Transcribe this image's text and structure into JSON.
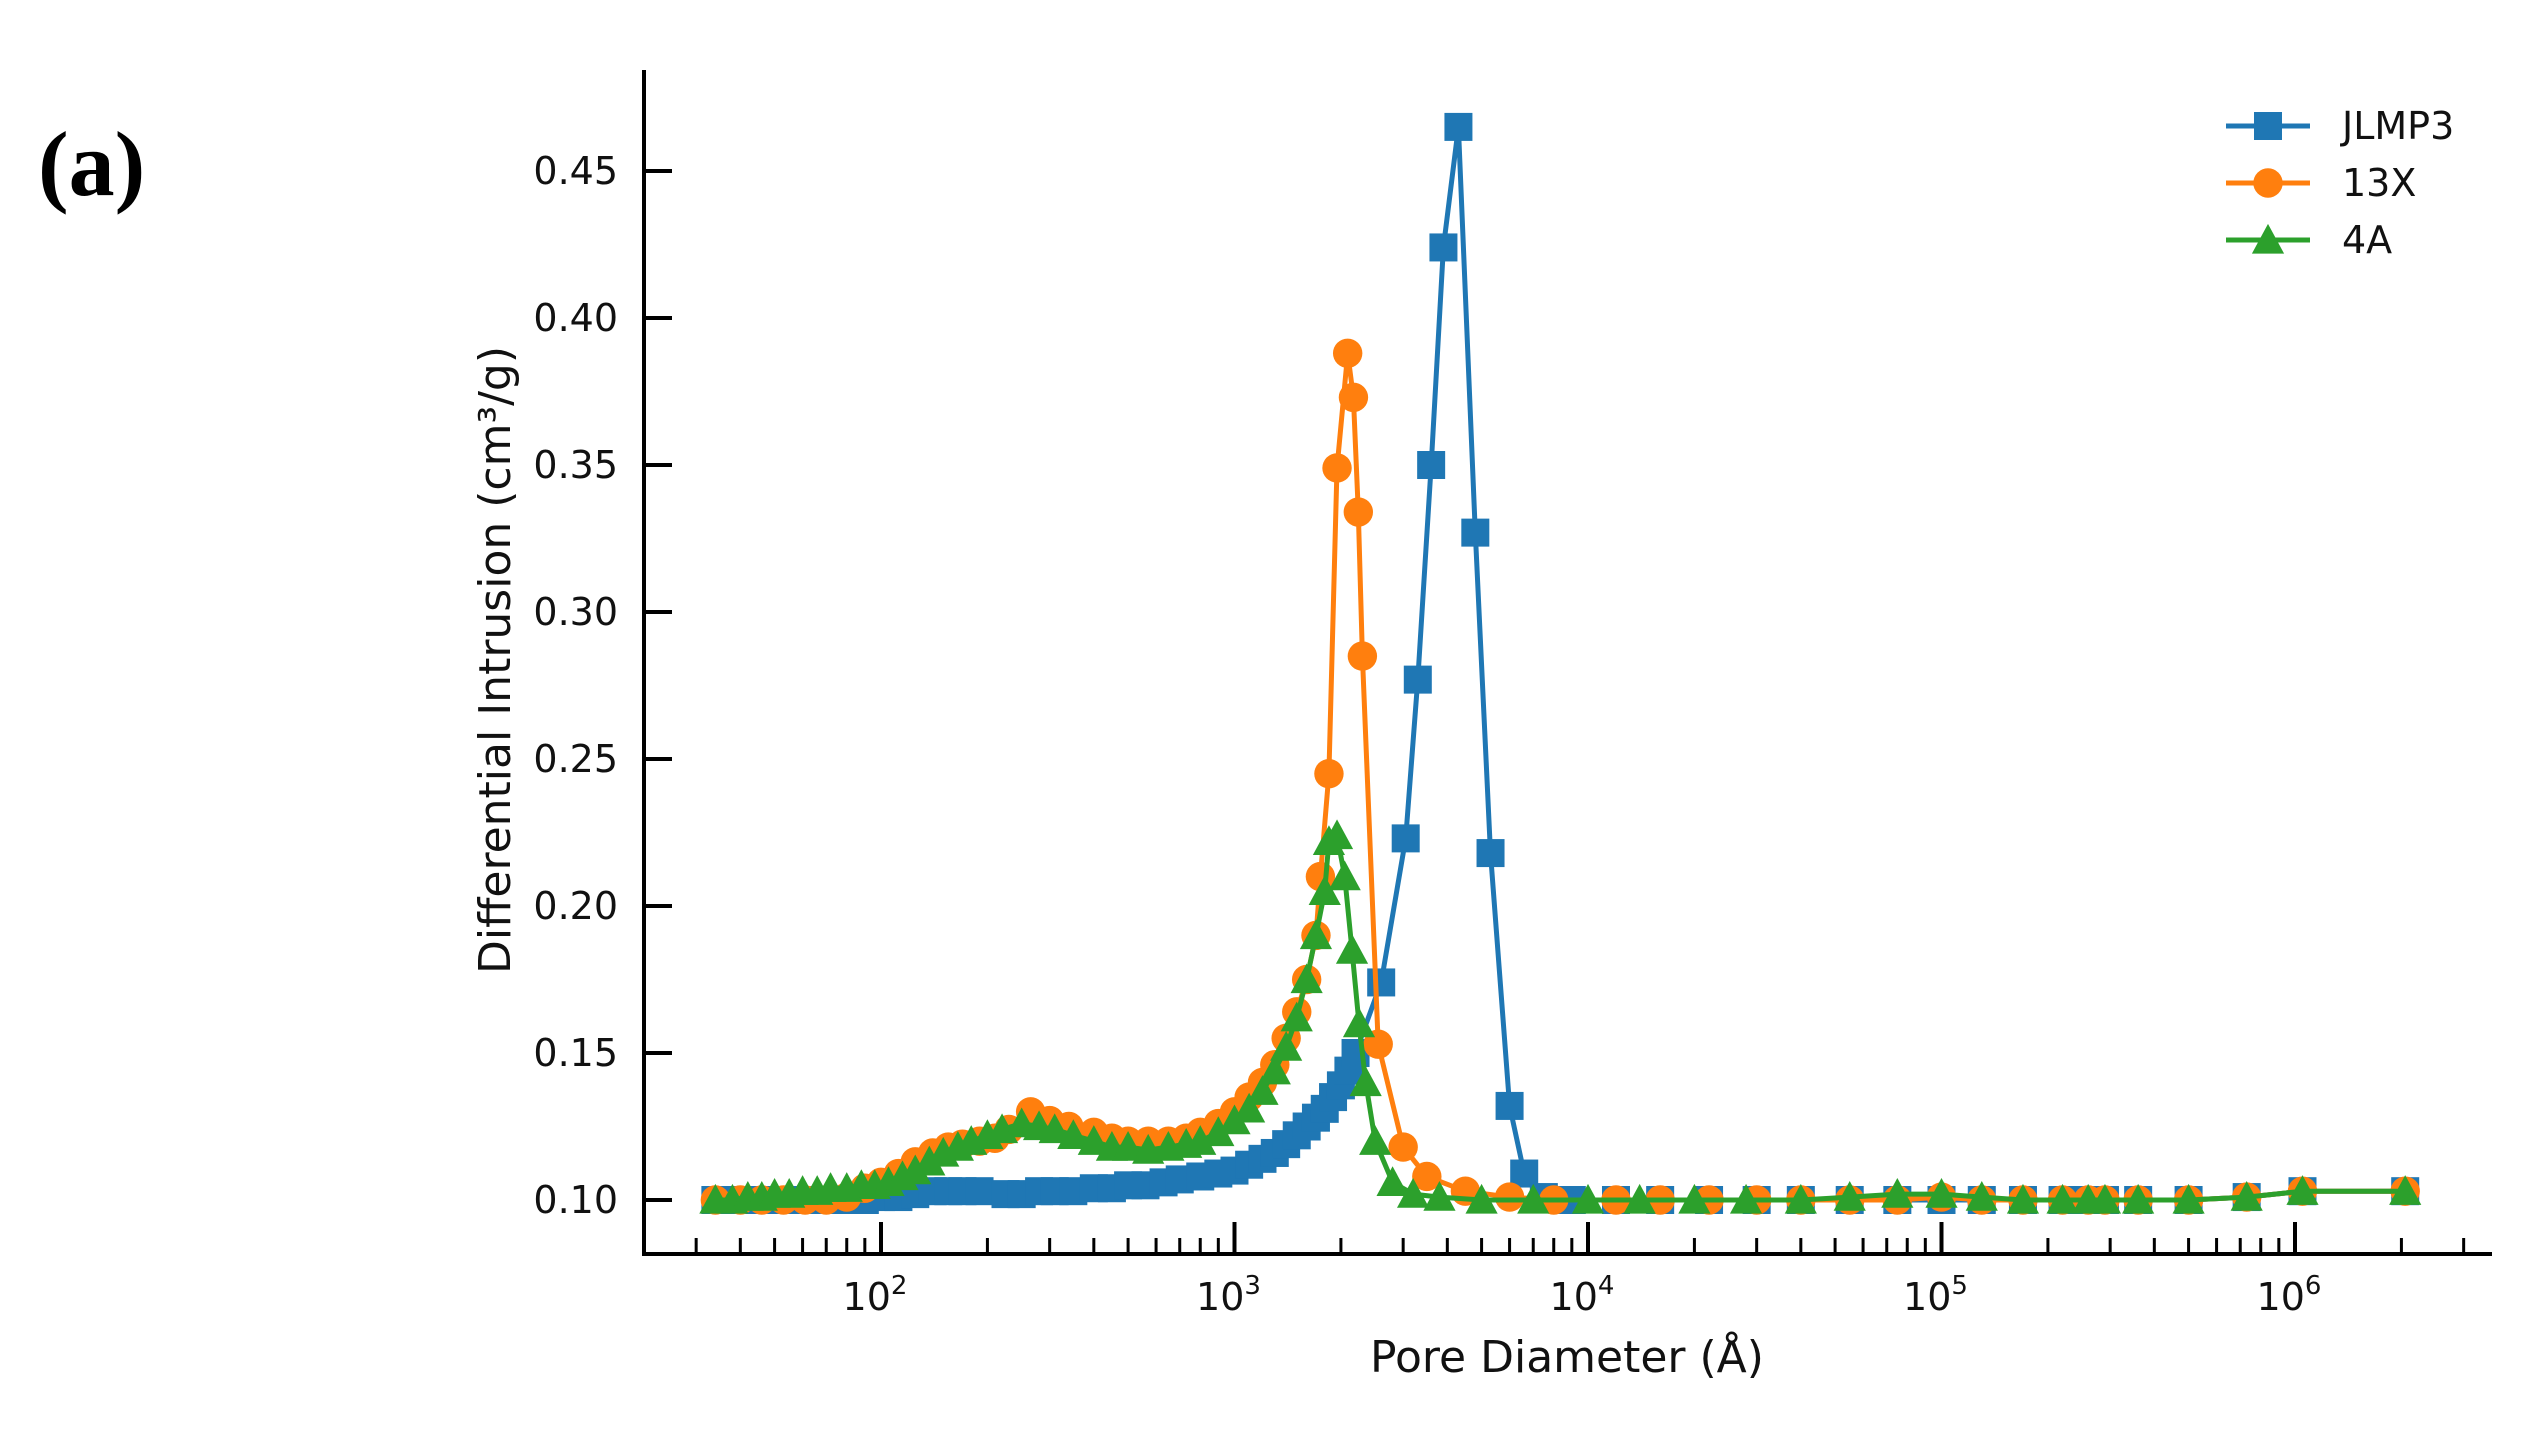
{
  "figure": {
    "panel_label": "(a)"
  },
  "chart_data": {
    "type": "line",
    "title": "",
    "xlabel": "Pore Diameter (Å)",
    "ylabel": "Differential Intrusion (cm³/g)",
    "xscale": "log",
    "xlim": [
      20,
      4000000
    ],
    "ylim": [
      0.082,
      0.478
    ],
    "x_ticks": [
      {
        "value": 100,
        "label": "10",
        "exp": "2"
      },
      {
        "value": 1000,
        "label": "10",
        "exp": "3"
      },
      {
        "value": 10000,
        "label": "10",
        "exp": "4"
      },
      {
        "value": 100000,
        "label": "10",
        "exp": "5"
      },
      {
        "value": 1000000,
        "label": "10",
        "exp": "6"
      }
    ],
    "y_ticks": [
      0.1,
      0.15,
      0.2,
      0.25,
      0.3,
      0.35,
      0.4,
      0.45
    ],
    "y_tick_labels": [
      "0.10",
      "0.15",
      "0.20",
      "0.25",
      "0.30",
      "0.35",
      "0.40",
      "0.45"
    ],
    "grid": false,
    "legend_position": "upper right",
    "series": [
      {
        "name": "JLMP3",
        "color": "#1f77b4",
        "marker": "square",
        "x": [
          34,
          40,
          46,
          53,
          61,
          70,
          80,
          90,
          100,
          112,
          125,
          140,
          155,
          170,
          190,
          225,
          250,
          280,
          310,
          350,
          400,
          450,
          500,
          560,
          630,
          700,
          800,
          900,
          1000,
          1100,
          1200,
          1300,
          1400,
          1500,
          1600,
          1700,
          1800,
          1900,
          2000,
          2100,
          2200,
          2600,
          3050,
          3300,
          3600,
          3900,
          4300,
          4800,
          5300,
          6000,
          6600,
          7500,
          9000,
          12000,
          16000,
          22000,
          30000,
          40000,
          55000,
          75000,
          100000,
          130000,
          170000,
          220000,
          260000,
          290000,
          360000,
          500000,
          730000,
          1050000,
          2050000
        ],
        "y": [
          0.1,
          0.1,
          0.1,
          0.1,
          0.1,
          0.1,
          0.1,
          0.1,
          0.101,
          0.101,
          0.102,
          0.103,
          0.103,
          0.103,
          0.103,
          0.102,
          0.102,
          0.103,
          0.103,
          0.103,
          0.104,
          0.104,
          0.105,
          0.105,
          0.106,
          0.107,
          0.108,
          0.109,
          0.11,
          0.112,
          0.114,
          0.116,
          0.119,
          0.122,
          0.125,
          0.128,
          0.131,
          0.135,
          0.139,
          0.144,
          0.15,
          0.174,
          0.223,
          0.277,
          0.35,
          0.424,
          0.465,
          0.327,
          0.218,
          0.132,
          0.109,
          0.101,
          0.1,
          0.1,
          0.1,
          0.1,
          0.1,
          0.1,
          0.1,
          0.1,
          0.1,
          0.1,
          0.1,
          0.1,
          0.1,
          0.1,
          0.1,
          0.1,
          0.101,
          0.103,
          0.103
        ]
      },
      {
        "name": "13X",
        "color": "#ff7f0e",
        "marker": "circle",
        "x": [
          34,
          40,
          46,
          53,
          61,
          70,
          80,
          90,
          100,
          112,
          125,
          140,
          155,
          170,
          190,
          210,
          230,
          265,
          300,
          340,
          400,
          450,
          500,
          570,
          650,
          730,
          800,
          900,
          1000,
          1100,
          1200,
          1300,
          1400,
          1500,
          1600,
          1700,
          1750,
          1850,
          1950,
          2090,
          2170,
          2240,
          2300,
          2550,
          3000,
          3500,
          4500,
          6000,
          8000,
          12000,
          16000,
          22000,
          30000,
          40000,
          55000,
          75000,
          100000,
          130000,
          170000,
          220000,
          260000,
          290000,
          360000,
          500000,
          730000,
          1050000,
          2050000
        ],
        "y": [
          0.1,
          0.1,
          0.1,
          0.1,
          0.1,
          0.1,
          0.101,
          0.104,
          0.106,
          0.109,
          0.113,
          0.116,
          0.118,
          0.119,
          0.12,
          0.121,
          0.124,
          0.13,
          0.127,
          0.125,
          0.123,
          0.121,
          0.12,
          0.12,
          0.12,
          0.121,
          0.123,
          0.126,
          0.13,
          0.135,
          0.14,
          0.146,
          0.155,
          0.164,
          0.175,
          0.19,
          0.21,
          0.245,
          0.349,
          0.388,
          0.373,
          0.334,
          0.285,
          0.153,
          0.118,
          0.108,
          0.103,
          0.101,
          0.1,
          0.1,
          0.1,
          0.1,
          0.1,
          0.1,
          0.1,
          0.1,
          0.101,
          0.1,
          0.1,
          0.1,
          0.1,
          0.1,
          0.1,
          0.1,
          0.101,
          0.103,
          0.103
        ]
      },
      {
        "name": "4A",
        "color": "#2ca02c",
        "marker": "triangle",
        "x": [
          34,
          38,
          42,
          46,
          50,
          55,
          60,
          66,
          72,
          80,
          88,
          96,
          105,
          115,
          125,
          137,
          150,
          165,
          180,
          200,
          220,
          250,
          280,
          310,
          350,
          400,
          450,
          500,
          570,
          650,
          730,
          800,
          900,
          1000,
          1100,
          1200,
          1300,
          1400,
          1500,
          1600,
          1700,
          1800,
          1850,
          1950,
          2050,
          2150,
          2250,
          2350,
          2500,
          2800,
          3200,
          3800,
          5000,
          7000,
          10000,
          14000,
          20000,
          28000,
          40000,
          55000,
          75000,
          100000,
          130000,
          170000,
          220000,
          260000,
          290000,
          360000,
          500000,
          730000,
          1050000,
          2050000
        ],
        "y": [
          0.1,
          0.1,
          0.101,
          0.101,
          0.102,
          0.102,
          0.103,
          0.103,
          0.104,
          0.104,
          0.105,
          0.105,
          0.106,
          0.108,
          0.11,
          0.113,
          0.116,
          0.118,
          0.12,
          0.122,
          0.124,
          0.126,
          0.125,
          0.124,
          0.122,
          0.12,
          0.118,
          0.118,
          0.117,
          0.118,
          0.119,
          0.12,
          0.123,
          0.127,
          0.131,
          0.137,
          0.144,
          0.152,
          0.162,
          0.175,
          0.19,
          0.205,
          0.222,
          0.224,
          0.21,
          0.185,
          0.16,
          0.14,
          0.12,
          0.106,
          0.102,
          0.101,
          0.1,
          0.1,
          0.1,
          0.1,
          0.1,
          0.1,
          0.1,
          0.101,
          0.102,
          0.102,
          0.101,
          0.1,
          0.1,
          0.1,
          0.1,
          0.1,
          0.1,
          0.101,
          0.103,
          0.103
        ]
      }
    ]
  }
}
